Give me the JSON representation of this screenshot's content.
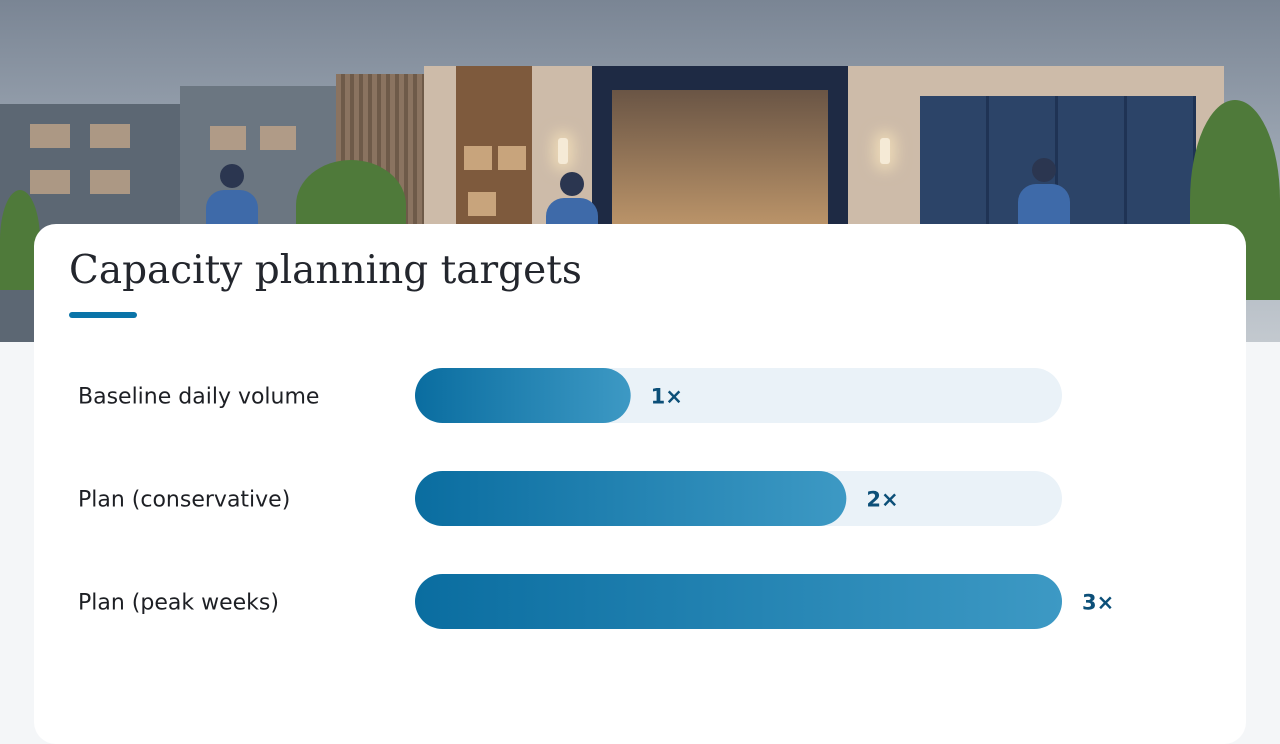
{
  "colors": {
    "accent": "#0a74a8",
    "bar_start": "#0a6da0",
    "bar_end": "#3d99c4",
    "track": "#eaf2f8",
    "value_text": "#0c4f78"
  },
  "chart_data": {
    "type": "bar",
    "orientation": "horizontal",
    "title": "Capacity planning targets",
    "categories": [
      "Baseline daily volume",
      "Plan (conservative)",
      "Plan (peak weeks)"
    ],
    "values": [
      1,
      2,
      3
    ],
    "value_labels": [
      "1×",
      "2×",
      "3×"
    ],
    "xlim": [
      0,
      3
    ],
    "grid": false,
    "legend": "none"
  }
}
